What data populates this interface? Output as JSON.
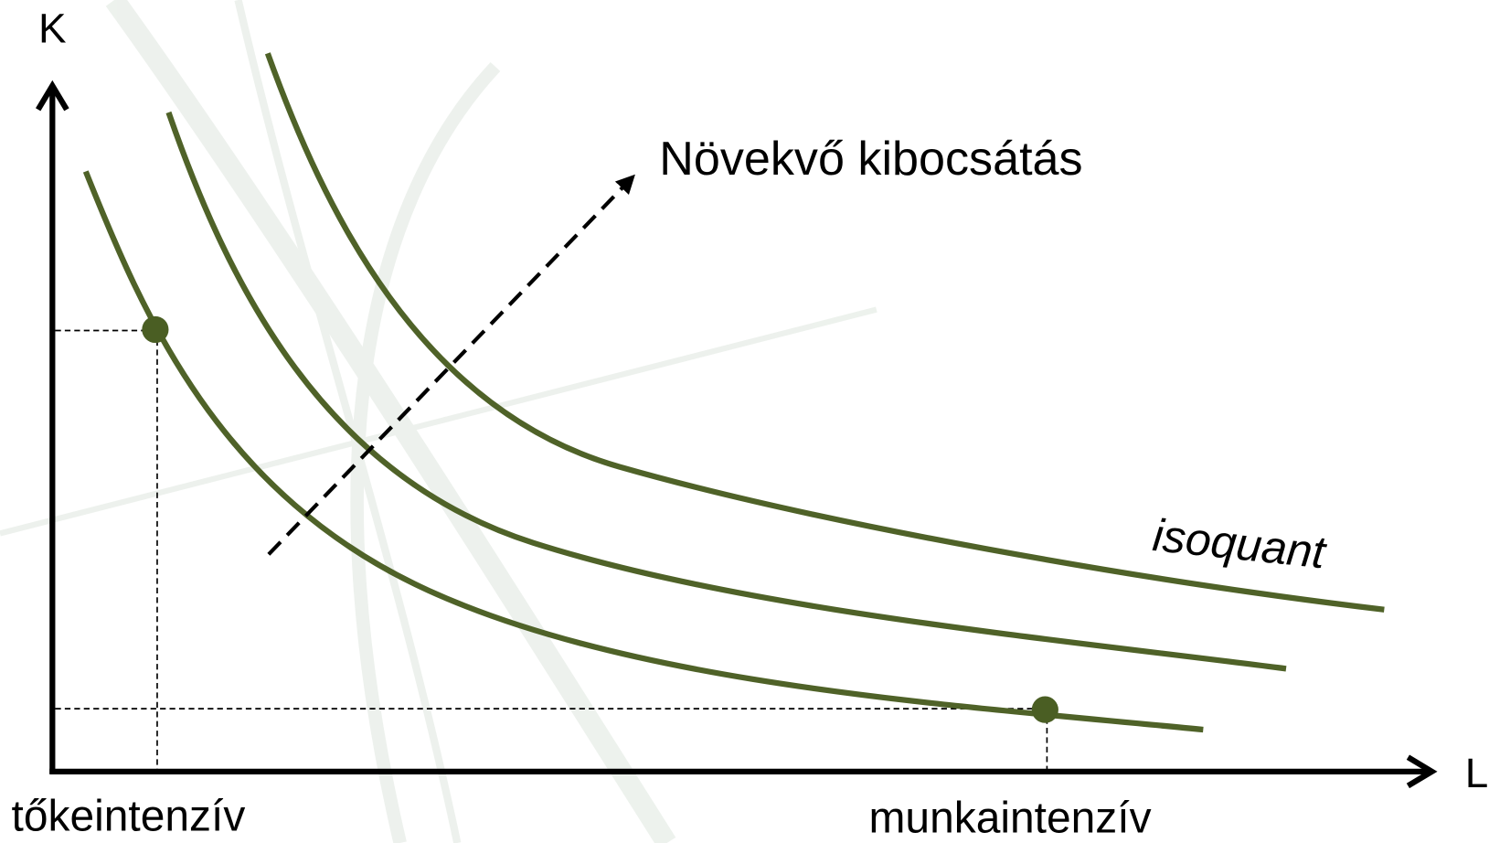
{
  "axes": {
    "y_label": "K",
    "x_label": "L"
  },
  "annotation": "Növekvő kibocsátás",
  "curve_label": "isoquant",
  "points": {
    "left_label": "tőkeintenzív",
    "right_label": "munkaintenzív"
  }
}
